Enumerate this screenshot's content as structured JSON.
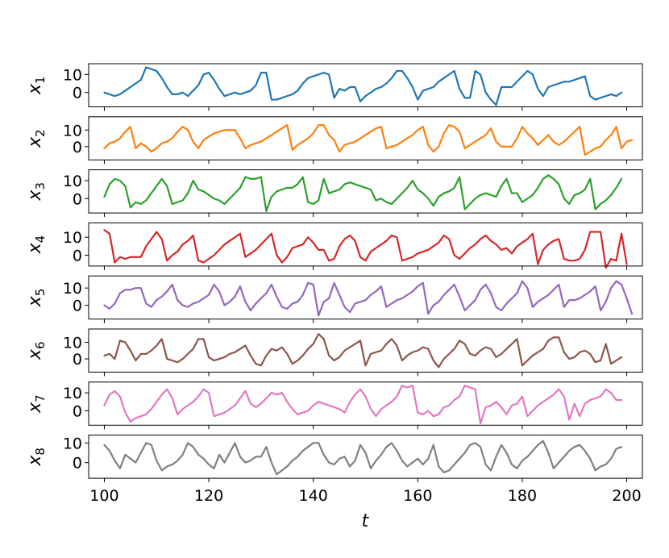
{
  "chart_data": {
    "type": "line",
    "xlabel": "t",
    "x_start": 100,
    "x_end": 199,
    "xlim": [
      97,
      203
    ],
    "xticks": [
      100,
      120,
      140,
      160,
      180,
      200
    ],
    "shared_x": true,
    "grid": false,
    "panels": [
      {
        "ylabel": "x",
        "sub": "1",
        "color": "#1f77b4",
        "ylim": [
          -8,
          16
        ],
        "yticks": [
          0,
          10
        ],
        "values": [
          0,
          -1,
          -2,
          -1,
          1,
          3,
          5,
          7,
          14,
          13,
          12,
          8,
          3,
          -1,
          -1,
          0,
          -2,
          1,
          4,
          10,
          11,
          7,
          2,
          -2,
          -1,
          0,
          -1,
          0,
          1,
          4,
          11,
          11,
          -4,
          -4,
          -3,
          -2,
          -1,
          1,
          5,
          8,
          9,
          10,
          11,
          10,
          -3,
          2,
          1,
          3,
          3,
          -5,
          -2,
          0,
          2,
          3,
          5,
          8,
          12,
          12,
          8,
          3,
          -4,
          1,
          2,
          3,
          6,
          8,
          10,
          12,
          2,
          -3,
          -3,
          12,
          10,
          0,
          -4,
          -7,
          3,
          3,
          3,
          6,
          9,
          12,
          10,
          2,
          -2,
          3,
          4,
          5,
          6,
          6,
          7,
          8,
          9,
          -2,
          -4,
          -3,
          -2,
          -1,
          -2,
          0
        ]
      },
      {
        "ylabel": "x",
        "sub": "2",
        "color": "#ff7f0e",
        "ylim": [
          -8,
          18
        ],
        "yticks": [
          0,
          10
        ],
        "values": [
          -1,
          2,
          3,
          5,
          9,
          12,
          -1,
          2,
          0,
          -3,
          -1,
          2,
          3,
          5,
          9,
          12,
          10,
          3,
          -1,
          4,
          6,
          8,
          9,
          10,
          10,
          10,
          5,
          -1,
          1,
          2,
          3,
          5,
          7,
          9,
          11,
          13,
          -2,
          1,
          3,
          5,
          8,
          13,
          13,
          7,
          4,
          -3,
          1,
          2,
          3,
          5,
          7,
          9,
          11,
          12,
          -1,
          0,
          1,
          3,
          5,
          7,
          10,
          12,
          1,
          -3,
          0,
          8,
          13,
          12,
          9,
          -1,
          1,
          3,
          5,
          7,
          11,
          3,
          0,
          0,
          0,
          5,
          12,
          8,
          5,
          1,
          4,
          7,
          3,
          1,
          3,
          6,
          9,
          12,
          -5,
          -3,
          -1,
          0,
          4,
          7,
          12,
          -1,
          3,
          4
        ]
      },
      {
        "ylabel": "x",
        "sub": "3",
        "color": "#2ca02c",
        "ylim": [
          -8,
          16
        ],
        "yticks": [
          0,
          10
        ],
        "values": [
          1,
          8,
          11,
          10,
          7,
          -5,
          -2,
          -3,
          -1,
          3,
          7,
          11,
          7,
          -3,
          -2,
          -1,
          3,
          10,
          5,
          4,
          2,
          0,
          -1,
          -3,
          0,
          3,
          6,
          12,
          11,
          11,
          12,
          -7,
          1,
          4,
          5,
          6,
          6,
          8,
          12,
          -2,
          -3,
          -1,
          11,
          3,
          4,
          5,
          8,
          9,
          8,
          7,
          6,
          5,
          -1,
          0,
          -2,
          -3,
          0,
          3,
          6,
          10,
          5,
          3,
          0,
          -4,
          1,
          3,
          4,
          6,
          12,
          -6,
          -3,
          0,
          2,
          3,
          2,
          1,
          7,
          11,
          3,
          3,
          -2,
          0,
          2,
          6,
          11,
          13,
          11,
          8,
          0,
          -3,
          2,
          3,
          5,
          11,
          -6,
          -3,
          -1,
          2,
          6,
          11
        ]
      },
      {
        "ylabel": "x",
        "sub": "4",
        "color": "#d62728",
        "ylim": [
          -6,
          18
        ],
        "yticks": [
          0,
          10
        ],
        "values": [
          14,
          12,
          -4,
          -1,
          -2,
          -1,
          -1,
          -1,
          5,
          9,
          13,
          9,
          -3,
          0,
          2,
          6,
          8,
          11,
          -3,
          -4,
          -2,
          0,
          3,
          6,
          8,
          10,
          12,
          -1,
          1,
          3,
          6,
          9,
          12,
          0,
          -4,
          -1,
          4,
          5,
          6,
          10,
          7,
          3,
          3,
          -3,
          -2,
          5,
          9,
          11,
          8,
          -1,
          -3,
          2,
          4,
          6,
          8,
          11,
          10,
          -3,
          -2,
          -1,
          1,
          2,
          3,
          5,
          7,
          11,
          9,
          0,
          -2,
          1,
          4,
          6,
          9,
          11,
          8,
          6,
          3,
          4,
          1,
          5,
          7,
          9,
          12,
          -5,
          3,
          6,
          8,
          9,
          -2,
          -3,
          -3,
          -2,
          3,
          13,
          13,
          13,
          -7,
          -2,
          -3,
          12,
          -5
        ]
      },
      {
        "ylabel": "x",
        "sub": "5",
        "color": "#9467bd",
        "ylim": [
          -8,
          17
        ],
        "yticks": [
          0,
          10
        ],
        "values": [
          0,
          -2,
          1,
          7,
          9,
          9,
          10,
          10,
          1,
          -1,
          3,
          5,
          8,
          12,
          3,
          0,
          -1,
          1,
          2,
          4,
          6,
          12,
          8,
          0,
          2,
          5,
          11,
          2,
          -3,
          1,
          4,
          7,
          12,
          5,
          -1,
          -2,
          1,
          2,
          6,
          13,
          12,
          -6,
          2,
          4,
          13,
          6,
          -1,
          -4,
          1,
          2,
          3,
          6,
          8,
          11,
          -1,
          1,
          3,
          4,
          6,
          8,
          11,
          13,
          -5,
          0,
          2,
          6,
          9,
          12,
          5,
          -3,
          0,
          3,
          9,
          12,
          7,
          -1,
          -3,
          1,
          4,
          7,
          14,
          10,
          -1,
          2,
          4,
          6,
          9,
          12,
          -1,
          3,
          3,
          4,
          6,
          8,
          11,
          -3,
          2,
          10,
          14,
          12,
          4,
          -5
        ]
      },
      {
        "ylabel": "x",
        "sub": "6",
        "color": "#8c564b",
        "ylim": [
          -8,
          18
        ],
        "yticks": [
          0,
          10
        ],
        "values": [
          2,
          3,
          0,
          11,
          10,
          5,
          -1,
          3,
          3,
          5,
          8,
          12,
          0,
          -1,
          -2,
          0,
          3,
          6,
          12,
          12,
          1,
          -1,
          0,
          1,
          3,
          4,
          6,
          8,
          2,
          -3,
          -4,
          2,
          6,
          5,
          7,
          3,
          -3,
          -1,
          2,
          6,
          9,
          15,
          12,
          2,
          -1,
          1,
          5,
          7,
          9,
          11,
          -4,
          3,
          4,
          5,
          9,
          12,
          8,
          -1,
          2,
          4,
          5,
          7,
          6,
          -1,
          -5,
          0,
          3,
          6,
          11,
          9,
          3,
          2,
          5,
          7,
          6,
          1,
          3,
          6,
          9,
          12,
          -4,
          -1,
          2,
          4,
          6,
          11,
          13,
          13,
          4,
          0,
          1,
          4,
          5,
          3,
          -2,
          -1,
          9,
          -3,
          -1,
          1
        ]
      },
      {
        "ylabel": "x",
        "sub": "7",
        "color": "#e377c2",
        "ylim": [
          -8,
          16
        ],
        "yticks": [
          0,
          10
        ],
        "values": [
          3,
          9,
          11,
          8,
          -1,
          -6,
          -4,
          -3,
          -2,
          1,
          5,
          9,
          12,
          7,
          -2,
          1,
          3,
          5,
          8,
          12,
          10,
          -3,
          -2,
          -1,
          1,
          3,
          7,
          11,
          4,
          2,
          4,
          7,
          10,
          9,
          10,
          5,
          1,
          -2,
          -1,
          0,
          3,
          5,
          4,
          3,
          2,
          1,
          -1,
          5,
          9,
          12,
          8,
          1,
          -3,
          1,
          3,
          5,
          8,
          14,
          13,
          14,
          -1,
          -2,
          0,
          -3,
          -2,
          2,
          3,
          6,
          8,
          14,
          13,
          12,
          -7,
          2,
          3,
          5,
          2,
          -2,
          3,
          4,
          8,
          -3,
          0,
          3,
          5,
          7,
          9,
          12,
          8,
          -5,
          4,
          -3,
          4,
          6,
          7,
          8,
          12,
          10,
          6,
          6
        ]
      },
      {
        "ylabel": "x",
        "sub": "8",
        "color": "#7f7f7f",
        "ylim": [
          -8,
          14
        ],
        "yticks": [
          0,
          10
        ],
        "values": [
          9,
          6,
          1,
          -3,
          4,
          2,
          0,
          5,
          10,
          9,
          1,
          -4,
          -2,
          -1,
          1,
          4,
          10,
          8,
          4,
          2,
          -1,
          -3,
          4,
          0,
          5,
          10,
          3,
          0,
          1,
          3,
          3,
          8,
          0,
          -6,
          -4,
          -2,
          1,
          3,
          6,
          8,
          10,
          10,
          4,
          0,
          -1,
          2,
          3,
          -2,
          1,
          9,
          5,
          -3,
          1,
          4,
          8,
          10,
          6,
          1,
          -2,
          0,
          2,
          -1,
          2,
          9,
          -2,
          -5,
          -4,
          -1,
          2,
          5,
          9,
          10,
          8,
          -1,
          -4,
          3,
          9,
          5,
          -1,
          -3,
          1,
          3,
          6,
          9,
          11,
          5,
          -3,
          0,
          3,
          6,
          8,
          9,
          6,
          2,
          -4,
          -2,
          -1,
          2,
          7,
          8
        ]
      }
    ],
    "tick_labels_y": [
      "10",
      "0"
    ],
    "tick_labels_x": [
      "100",
      "120",
      "140",
      "160",
      "180",
      "200"
    ]
  }
}
